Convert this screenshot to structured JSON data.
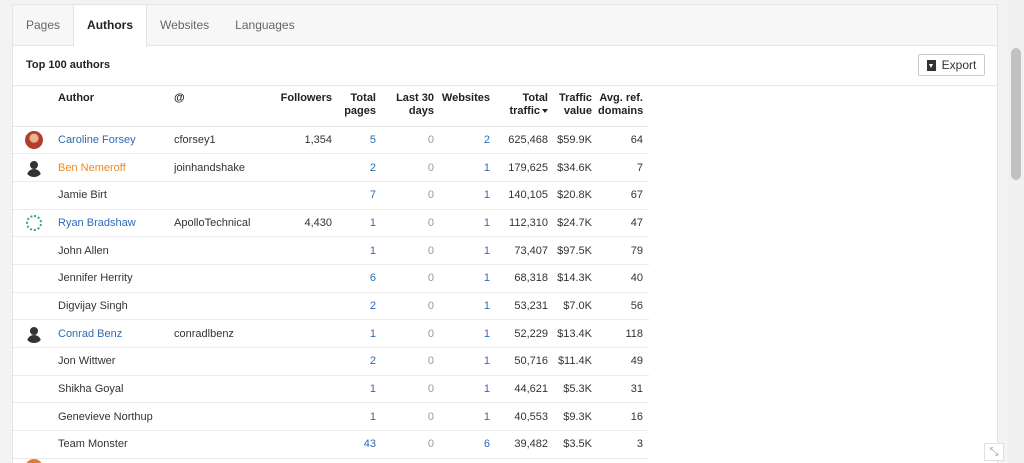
{
  "tabs": [
    {
      "label": "Pages",
      "active": false
    },
    {
      "label": "Authors",
      "active": true
    },
    {
      "label": "Websites",
      "active": false
    },
    {
      "label": "Languages",
      "active": false
    }
  ],
  "header": {
    "title": "Top 100 authors",
    "export_label": "Export"
  },
  "columns": {
    "author": "Author",
    "handle": "@",
    "followers": "Followers",
    "total_pages": "Total pages",
    "last_30": "Last 30 days",
    "websites": "Websites",
    "total_traffic": "Total traffic",
    "traffic_value": "Traffic value",
    "avg_ref": "Avg. ref. domains"
  },
  "rows": [
    {
      "avatar": "photo",
      "name": "Caroline Forsey",
      "name_style": "link",
      "handle": "cforsey1",
      "followers": "1,354",
      "total_pages": "5",
      "last_30": "0",
      "websites": "2",
      "total_traffic": "625,468",
      "traffic_value": "$59.9K",
      "avg_ref": "64"
    },
    {
      "avatar": "generic",
      "name": "Ben Nemeroff",
      "name_style": "orange",
      "handle": "joinhandshake",
      "followers": "",
      "total_pages": "2",
      "last_30": "0",
      "websites": "1",
      "total_traffic": "179,625",
      "traffic_value": "$34.6K",
      "avg_ref": "7"
    },
    {
      "avatar": "none",
      "name": "Jamie Birt",
      "name_style": "plain",
      "handle": "",
      "followers": "",
      "total_pages": "7",
      "last_30": "0",
      "websites": "1",
      "total_traffic": "140,105",
      "traffic_value": "$20.8K",
      "avg_ref": "67"
    },
    {
      "avatar": "ring",
      "name": "Ryan Bradshaw",
      "name_style": "link",
      "handle": "ApolloTechnical",
      "followers": "4,430",
      "total_pages": "1",
      "last_30": "0",
      "websites": "1",
      "total_traffic": "112,310",
      "traffic_value": "$24.7K",
      "avg_ref": "47"
    },
    {
      "avatar": "none",
      "name": "John Allen",
      "name_style": "plain",
      "handle": "",
      "followers": "",
      "total_pages": "1",
      "last_30": "0",
      "websites": "1",
      "total_traffic": "73,407",
      "traffic_value": "$97.5K",
      "avg_ref": "79"
    },
    {
      "avatar": "none",
      "name": "Jennifer Herrity",
      "name_style": "plain",
      "handle": "",
      "followers": "",
      "total_pages": "6",
      "last_30": "0",
      "websites": "1",
      "total_traffic": "68,318",
      "traffic_value": "$14.3K",
      "avg_ref": "40"
    },
    {
      "avatar": "none",
      "name": "Digvijay Singh",
      "name_style": "plain",
      "handle": "",
      "followers": "",
      "total_pages": "2",
      "last_30": "0",
      "websites": "1",
      "total_traffic": "53,231",
      "traffic_value": "$7.0K",
      "avg_ref": "56"
    },
    {
      "avatar": "generic",
      "name": "Conrad Benz",
      "name_style": "link",
      "handle": "conradlbenz",
      "followers": "",
      "total_pages": "1",
      "last_30": "0",
      "websites": "1",
      "total_traffic": "52,229",
      "traffic_value": "$13.4K",
      "avg_ref": "118"
    },
    {
      "avatar": "none",
      "name": "Jon Wittwer",
      "name_style": "plain",
      "handle": "",
      "followers": "",
      "total_pages": "2",
      "last_30": "0",
      "websites": "1",
      "total_traffic": "50,716",
      "traffic_value": "$11.4K",
      "avg_ref": "49"
    },
    {
      "avatar": "none",
      "name": "Shikha Goyal",
      "name_style": "plain",
      "handle": "",
      "followers": "",
      "total_pages": "1",
      "last_30": "0",
      "websites": "1",
      "total_traffic": "44,621",
      "traffic_value": "$5.3K",
      "avg_ref": "31"
    },
    {
      "avatar": "none",
      "name": "Genevieve Northup",
      "name_style": "plain",
      "handle": "",
      "followers": "",
      "total_pages": "1",
      "last_30": "0",
      "websites": "1",
      "total_traffic": "40,553",
      "traffic_value": "$9.3K",
      "avg_ref": "16"
    },
    {
      "avatar": "none",
      "name": "Team Monster",
      "name_style": "plain",
      "handle": "",
      "followers": "",
      "total_pages": "43",
      "last_30": "0",
      "websites": "6",
      "total_traffic": "39,482",
      "traffic_value": "$3.5K",
      "avg_ref": "3"
    }
  ],
  "colors": {
    "link": "#2d6bb8",
    "highlight": "#f0891e",
    "muted": "#999999"
  },
  "icons": {
    "export": "download-file-icon",
    "sort": "sort-desc-icon",
    "collapse": "collapse-icon"
  }
}
